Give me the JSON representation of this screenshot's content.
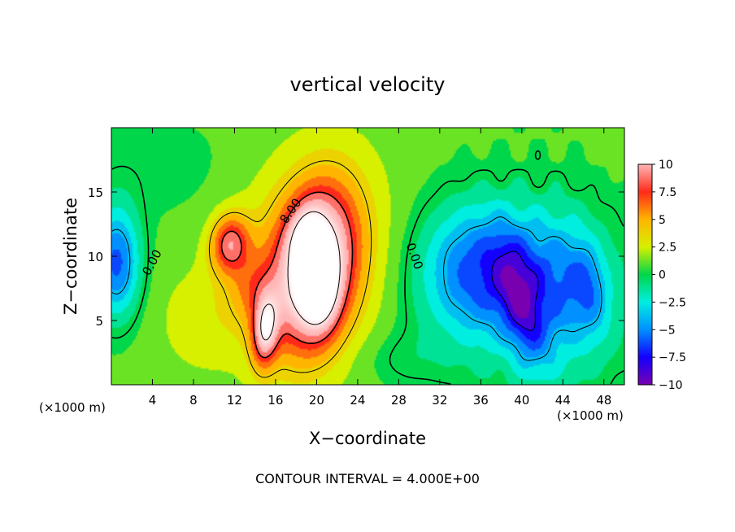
{
  "chart_data": {
    "type": "heatmap",
    "title": "vertical velocity",
    "xlabel": "X−coordinate",
    "ylabel": "Z−coordinate",
    "x_unit_left": "(×1000 m)",
    "x_unit_right": "(×1000 m)",
    "xlim": [
      0,
      50
    ],
    "ylim": [
      0,
      20
    ],
    "x_ticks": [
      4,
      8,
      12,
      16,
      20,
      24,
      28,
      32,
      36,
      40,
      44,
      48
    ],
    "y_ticks": [
      5,
      10,
      15
    ],
    "footer": "CONTOUR INTERVAL = 4.000E+00",
    "contour_labels": [
      {
        "text": "0.00",
        "x": 4.0,
        "y": 9.5,
        "angle": -62
      },
      {
        "text": "8.00",
        "x": 17.5,
        "y": 13.5,
        "angle": -55
      },
      {
        "text": "0.00",
        "x": 29.5,
        "y": 10.0,
        "angle": 70
      }
    ],
    "colorbar": {
      "ticks": [
        "10",
        "7.5",
        "5",
        "2.5",
        "0",
        "−2.5",
        "−5",
        "−7.5",
        "−10"
      ],
      "values": [
        10,
        7.5,
        5,
        2.5,
        0,
        -2.5,
        -5,
        -7.5,
        -10
      ],
      "colors": [
        "#ffb6b6",
        "#ff2a1a",
        "#ffb400",
        "#d6f000",
        "#00d64a",
        "#00eee0",
        "#0090ff",
        "#1400ff",
        "#7800b0"
      ]
    },
    "features": [
      {
        "type": "updraft-core",
        "x": 19.5,
        "y": 8.5,
        "peak": 16
      },
      {
        "type": "updraft",
        "x": 11.5,
        "y": 11.0,
        "peak": 8
      },
      {
        "type": "updraft",
        "x": 15.0,
        "y": 4.0,
        "peak": 9
      },
      {
        "type": "downdraft",
        "x": 36.0,
        "y": 9.0,
        "peak": -5.5
      },
      {
        "type": "downdraft",
        "x": 40.0,
        "y": 6.0,
        "peak": -9
      },
      {
        "type": "downdraft",
        "x": 46.0,
        "y": 7.5,
        "peak": -8
      },
      {
        "type": "downdraft",
        "x": 0.5,
        "y": 9.5,
        "peak": -6
      }
    ]
  }
}
